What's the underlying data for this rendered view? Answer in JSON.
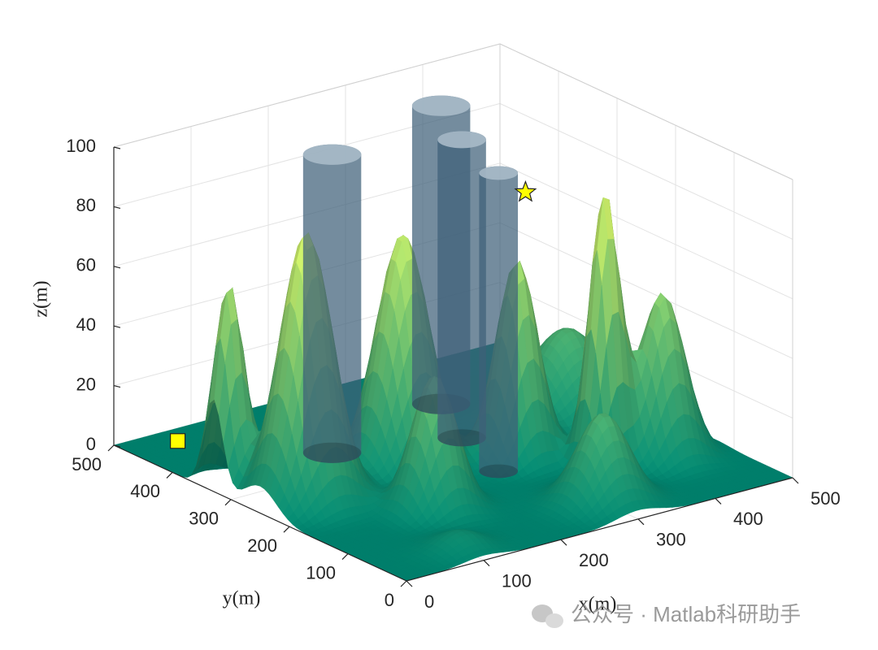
{
  "chart_data": {
    "type": "surface3d",
    "xlabel": "x(m)",
    "ylabel": "y(m)",
    "zlabel": "z(m)",
    "xlim": [
      0,
      500
    ],
    "ylim": [
      0,
      500
    ],
    "zlim": [
      0,
      100
    ],
    "xticks": [
      0,
      100,
      200,
      300,
      400,
      500
    ],
    "yticks": [
      0,
      100,
      200,
      300,
      400,
      500
    ],
    "zticks": [
      0,
      20,
      40,
      60,
      80,
      100
    ],
    "grid": true,
    "surface_colors": [
      "#00806c",
      "#f0ff66"
    ],
    "peaks": [
      {
        "x": 20,
        "y": 330,
        "height": 68,
        "spread": 16
      },
      {
        "x": 60,
        "y": 250,
        "height": 90,
        "spread": 28
      },
      {
        "x": 200,
        "y": 270,
        "height": 78,
        "spread": 28
      },
      {
        "x": 150,
        "y": 150,
        "height": 45,
        "spread": 24
      },
      {
        "x": 310,
        "y": 220,
        "height": 66,
        "spread": 22
      },
      {
        "x": 420,
        "y": 280,
        "height": 30,
        "spread": 40
      },
      {
        "x": 370,
        "y": 150,
        "height": 90,
        "spread": 16
      },
      {
        "x": 430,
        "y": 130,
        "height": 55,
        "spread": 24
      },
      {
        "x": 300,
        "y": 60,
        "height": 30,
        "spread": 28
      },
      {
        "x": 100,
        "y": 40,
        "height": 6,
        "spread": 25
      }
    ],
    "obstacles": [
      {
        "x": 166,
        "y": 346,
        "radius": 30,
        "height": 100
      },
      {
        "x": 342,
        "y": 392,
        "radius": 30,
        "height": 100
      },
      {
        "x": 299,
        "y": 300,
        "radius": 25,
        "height": 100
      },
      {
        "x": 270,
        "y": 199,
        "radius": 20,
        "height": 100
      }
    ],
    "obstacle_color": "#3f6079",
    "start": {
      "x": 60,
      "y": 470,
      "z": 0,
      "color": "#ffff00"
    },
    "goal": {
      "x": 480,
      "y": 430,
      "z": 58,
      "color": "#ffff00"
    }
  },
  "watermark": "公众号 · Matlab科研助手"
}
